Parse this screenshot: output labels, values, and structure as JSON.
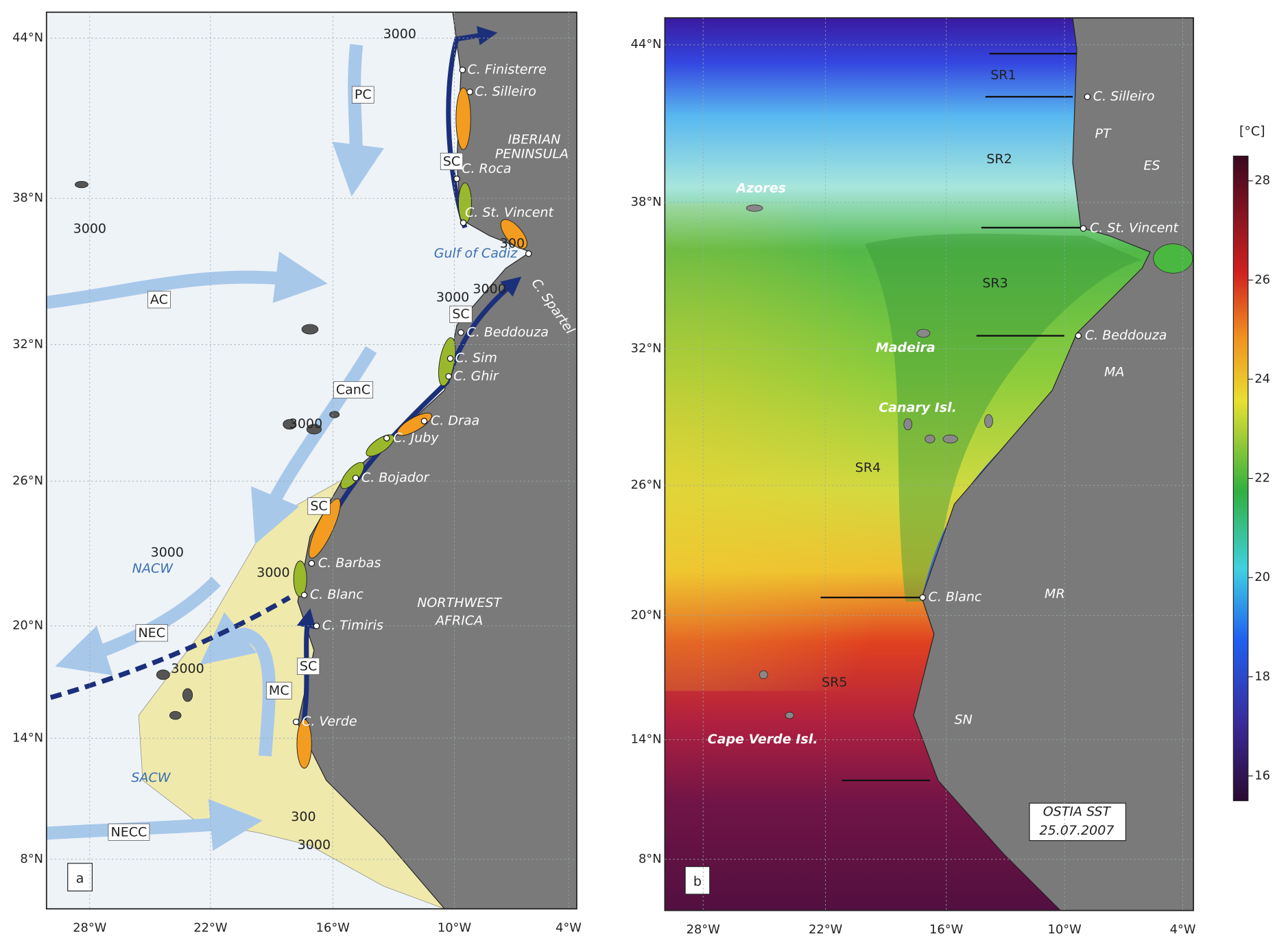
{
  "panels": [
    {
      "label": "a",
      "lat_ticks": [
        "44°N",
        "38°N",
        "32°N",
        "26°N",
        "20°N",
        "14°N",
        "8°N"
      ],
      "lon_ticks": [
        "28°W",
        "22°W",
        "16°W",
        "10°W",
        "4°W"
      ],
      "labels": [
        "C. Finisterre",
        "C. Silleiro",
        "IBERIAN",
        "PENINSULA",
        "SC",
        "C. Roca",
        "C. St. Vincent",
        "Gulf of Cadiz",
        "C. Spartel",
        "PC",
        "AC",
        "SC",
        "C. Beddouza",
        "C. Sim",
        "C. Ghir",
        "CanC",
        "C. Draa",
        "C. Juby",
        "C. Bojador",
        "SC",
        "C. Barbas",
        "NACW",
        "C. Blanc",
        "NORTHWEST",
        "AFRICA",
        "NEC",
        "C. Timiris",
        "SC",
        "MC",
        "C. Verde",
        "SACW",
        "NECC"
      ],
      "contour_labels": [
        "3000",
        "3000",
        "3000",
        "3000",
        "3000",
        "3000",
        "300",
        "3000",
        "300",
        "3000",
        "3000"
      ]
    },
    {
      "label": "b",
      "lat_ticks": [
        "44°N",
        "38°N",
        "32°N",
        "26°N",
        "20°N",
        "14°N",
        "8°N"
      ],
      "lon_ticks": [
        "28°W",
        "22°W",
        "16°W",
        "10°W",
        "4°W"
      ],
      "labels": [
        "SR1",
        "C. Silleiro",
        "PT",
        "SR2",
        "ES",
        "Azores",
        "C. St. Vincent",
        "SR3",
        "Madeira",
        "C. Beddouza",
        "MA",
        "Canary Isl.",
        "SR4",
        "C. Blanc",
        "MR",
        "SR5",
        "SN",
        "Cape Verde Isl.",
        "OSTIA SST",
        "25.07.2007"
      ]
    }
  ],
  "colorbar": {
    "unit": "[°C]",
    "range": [
      15.5,
      28.5
    ],
    "ticks": [
      16,
      18,
      20,
      22,
      24,
      26,
      28
    ]
  }
}
